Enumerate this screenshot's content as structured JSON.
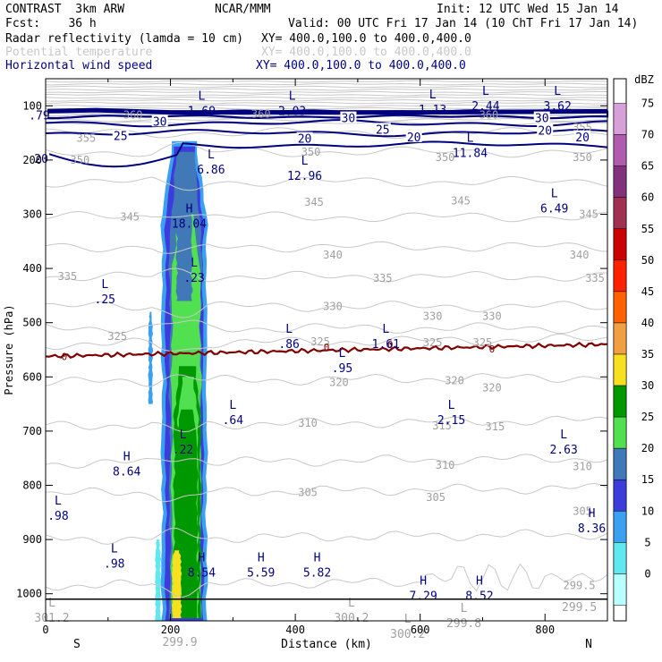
{
  "header": {
    "model": "CONTRAST  3km ARW",
    "org": "NCAR/MMM",
    "init": "Init: 12 UTC Wed 15 Jan 14",
    "fcst": "Fcst:    36 h",
    "valid": "Valid: 00 UTC Fri 17 Jan 14 (10 ChT Fri 17 Jan 14)",
    "fields": [
      {
        "name": "Radar reflectivity (lamda = 10 cm)",
        "xy": "XY= 400.0,100.0 to 400.0,400.0",
        "color": "#000000"
      },
      {
        "name": "Potential temperature",
        "xy": "XY= 400.0,100.0 to 400.0,400.0",
        "color": "#c8c8c8"
      },
      {
        "name": "Horizontal wind speed",
        "xy": "XY= 400.0,100.0 to 400.0,400.0",
        "color": "#00007f"
      }
    ]
  },
  "chart_data": {
    "type": "heatmap",
    "title": "Vertical cross-section",
    "xlabel": "Distance (km)",
    "ylabel": "Pressure (hPa)",
    "xlim": [
      0,
      900
    ],
    "ylim": [
      1050,
      50
    ],
    "xticks": [
      "0",
      "200",
      "400",
      "600",
      "800"
    ],
    "yticks": [
      "100",
      "200",
      "300",
      "400",
      "500",
      "600",
      "700",
      "800",
      "900",
      "1000"
    ],
    "x_end_labels": {
      "left": "S",
      "right": "N"
    },
    "colorbar": {
      "unit": "dBZ",
      "levels": [
        "75",
        "70",
        "65",
        "60",
        "55",
        "50",
        "45",
        "40",
        "35",
        "30",
        "25",
        "20",
        "15",
        "10",
        "5",
        "0"
      ],
      "colors": [
        "#d8a0d8",
        "#b05ab0",
        "#82327c",
        "#a03050",
        "#cc0000",
        "#ff2000",
        "#ff6000",
        "#f0a040",
        "#f8e020",
        "#009800",
        "#50e050",
        "#4078b8",
        "#3c3cdc",
        "#3ca0f0",
        "#60e8f0",
        "#b8ffff"
      ]
    },
    "theta_labels": [
      {
        "text": "360",
        "x": 140,
        "p": 117
      },
      {
        "text": "360",
        "x": 345,
        "p": 115
      },
      {
        "text": "360",
        "x": 710,
        "p": 117
      },
      {
        "text": "355",
        "x": 65,
        "p": 160
      },
      {
        "text": "355",
        "x": 860,
        "p": 140
      },
      {
        "text": "350",
        "x": 55,
        "p": 200
      },
      {
        "text": "350",
        "x": 425,
        "p": 185
      },
      {
        "text": "350",
        "x": 640,
        "p": 195
      },
      {
        "text": "350",
        "x": 860,
        "p": 195
      },
      {
        "text": "345",
        "x": 135,
        "p": 305
      },
      {
        "text": "345",
        "x": 430,
        "p": 278
      },
      {
        "text": "345",
        "x": 665,
        "p": 275
      },
      {
        "text": "345",
        "x": 870,
        "p": 300
      },
      {
        "text": "340",
        "x": 460,
        "p": 375
      },
      {
        "text": "340",
        "x": 855,
        "p": 375
      },
      {
        "text": "335",
        "x": 35,
        "p": 415
      },
      {
        "text": "335",
        "x": 540,
        "p": 418
      },
      {
        "text": "335",
        "x": 880,
        "p": 418
      },
      {
        "text": "330",
        "x": 460,
        "p": 470
      },
      {
        "text": "330",
        "x": 620,
        "p": 488
      },
      {
        "text": "330",
        "x": 715,
        "p": 488
      },
      {
        "text": "325",
        "x": 115,
        "p": 525
      },
      {
        "text": "325",
        "x": 440,
        "p": 535
      },
      {
        "text": "325",
        "x": 620,
        "p": 537
      },
      {
        "text": "325",
        "x": 700,
        "p": 537
      },
      {
        "text": "320",
        "x": 470,
        "p": 610
      },
      {
        "text": "320",
        "x": 655,
        "p": 607
      },
      {
        "text": "320",
        "x": 715,
        "p": 620
      },
      {
        "text": "315",
        "x": 635,
        "p": 690
      },
      {
        "text": "315",
        "x": 720,
        "p": 692
      },
      {
        "text": "310",
        "x": 420,
        "p": 685
      },
      {
        "text": "310",
        "x": 640,
        "p": 763
      },
      {
        "text": "310",
        "x": 860,
        "p": 765
      },
      {
        "text": "305",
        "x": 420,
        "p": 813
      },
      {
        "text": "305",
        "x": 625,
        "p": 822
      },
      {
        "text": "305",
        "x": 860,
        "p": 848
      },
      {
        "text": "299.5",
        "x": 855,
        "p": 985
      }
    ],
    "wind_labels": [
      {
        "text": ".79",
        "x": -10,
        "p": 117
      },
      {
        "text": "30",
        "x": 183,
        "p": 128
      },
      {
        "text": "30",
        "x": 485,
        "p": 122
      },
      {
        "text": "30",
        "x": 795,
        "p": 122
      },
      {
        "text": "25",
        "x": 120,
        "p": 155
      },
      {
        "text": "25",
        "x": 540,
        "p": 143
      },
      {
        "text": "20",
        "x": 415,
        "p": 160
      },
      {
        "text": "20",
        "x": 590,
        "p": 157
      },
      {
        "text": "20",
        "x": 800,
        "p": 145
      },
      {
        "text": "20",
        "x": 860,
        "p": 157
      },
      {
        "text": "20",
        "x": -7,
        "p": 197
      }
    ],
    "zero_labels": [
      {
        "text": "0",
        "x": 30,
        "p": 562
      },
      {
        "text": "0",
        "x": 450,
        "p": 545
      },
      {
        "text": "0",
        "x": 552,
        "p": 540
      },
      {
        "text": "0",
        "x": 715,
        "p": 548
      }
    ],
    "extrema": [
      {
        "type": "L",
        "value": "1.69",
        "x": 250,
        "p": 110,
        "tone": "blue"
      },
      {
        "type": "L",
        "value": "2.03",
        "x": 395,
        "p": 110,
        "tone": "blue"
      },
      {
        "type": "L",
        "value": "1.13",
        "x": 620,
        "p": 108,
        "tone": "blue"
      },
      {
        "type": "L",
        "value": "2.44",
        "x": 705,
        "p": 101,
        "tone": "blue"
      },
      {
        "type": "L",
        "value": "3.62",
        "x": 820,
        "p": 101,
        "tone": "blue"
      },
      {
        "type": "L",
        "value": "11.84",
        "x": 680,
        "p": 188,
        "tone": "blue"
      },
      {
        "type": "L",
        "value": "6.86",
        "x": 265,
        "p": 218,
        "tone": "blue"
      },
      {
        "type": "L",
        "value": "12.96",
        "x": 415,
        "p": 230,
        "tone": "blue"
      },
      {
        "type": "L",
        "value": "6.49",
        "x": 815,
        "p": 290,
        "tone": "blue"
      },
      {
        "type": "H",
        "value": "18.04",
        "x": 230,
        "p": 318,
        "tone": "blue"
      },
      {
        "type": "L",
        "value": ".23",
        "x": 238,
        "p": 418,
        "tone": "blue"
      },
      {
        "type": "L",
        "value": ".25",
        "x": 95,
        "p": 458,
        "tone": "blue"
      },
      {
        "type": "L",
        "value": ".86",
        "x": 390,
        "p": 540,
        "tone": "blue"
      },
      {
        "type": "L",
        "value": ".95",
        "x": 475,
        "p": 585,
        "tone": "blue"
      },
      {
        "type": "L",
        "value": "1.61",
        "x": 545,
        "p": 540,
        "tone": "blue"
      },
      {
        "type": "L",
        "value": ".64",
        "x": 300,
        "p": 680,
        "tone": "blue"
      },
      {
        "type": "L",
        "value": "2.15",
        "x": 650,
        "p": 680,
        "tone": "blue"
      },
      {
        "type": "L",
        "value": ".22",
        "x": 220,
        "p": 735,
        "tone": "blue"
      },
      {
        "type": "L",
        "value": "2.63",
        "x": 830,
        "p": 735,
        "tone": "blue"
      },
      {
        "type": "H",
        "value": "8.64",
        "x": 130,
        "p": 775,
        "tone": "blue"
      },
      {
        "type": "L",
        "value": ".98",
        "x": 20,
        "p": 857,
        "tone": "blue"
      },
      {
        "type": "L",
        "value": ".98",
        "x": 110,
        "p": 945,
        "tone": "blue"
      },
      {
        "type": "H",
        "value": "8.54",
        "x": 250,
        "p": 962,
        "tone": "blue"
      },
      {
        "type": "H",
        "value": "5.59",
        "x": 345,
        "p": 962,
        "tone": "blue"
      },
      {
        "type": "H",
        "value": "5.82",
        "x": 435,
        "p": 962,
        "tone": "blue"
      },
      {
        "type": "H",
        "value": "7.29",
        "x": 605,
        "p": 1005,
        "tone": "blue"
      },
      {
        "type": "H",
        "value": "8.52",
        "x": 695,
        "p": 1005,
        "tone": "blue"
      },
      {
        "type": "H",
        "value": "8.36",
        "x": 875,
        "p": 880,
        "tone": "blue"
      },
      {
        "type": "L",
        "value": "301.2",
        "x": 10,
        "p": 1045,
        "tone": "gray"
      },
      {
        "type": "L",
        "value": "300.2",
        "x": 490,
        "p": 1045,
        "tone": "gray"
      },
      {
        "type": "L",
        "value": "300.2",
        "x": 580,
        "p": 1075,
        "tone": "gray"
      },
      {
        "type": "L",
        "value": "299.8",
        "x": 670,
        "p": 1055,
        "tone": "gray"
      },
      {
        "type": "",
        "value": "299.5",
        "x": 855,
        "p": 1025,
        "tone": "gray"
      },
      {
        "type": "",
        "value": "299.9",
        "x": 215,
        "p": 1090,
        "tone": "gray"
      }
    ]
  }
}
